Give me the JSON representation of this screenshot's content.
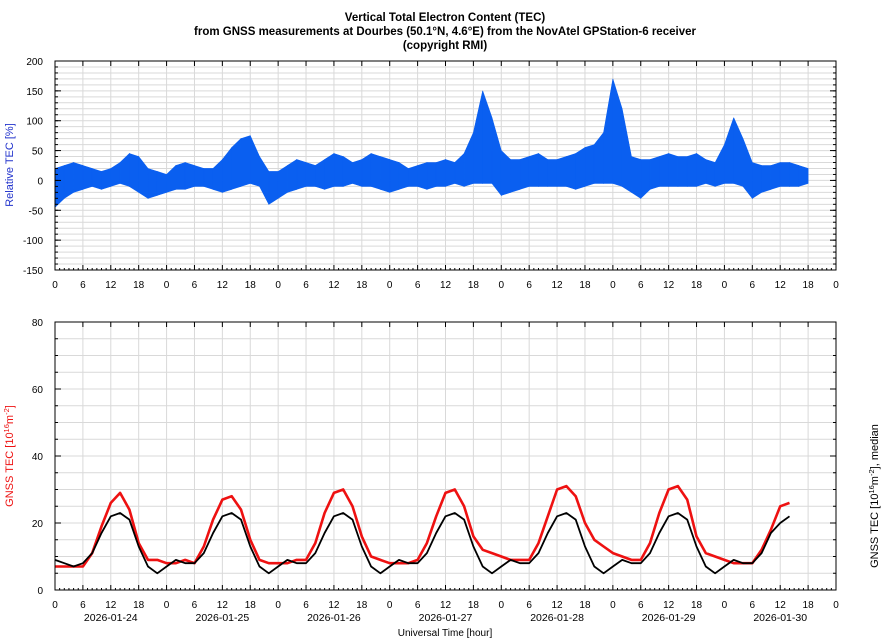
{
  "title": {
    "line1": "Vertical Total Electron Content (TEC)",
    "line2": "from GNSS measurements at Dourbes (50.1°N, 4.6°E) from the NovAtel GPStation-6 receiver",
    "line3": "(copyright RMI)"
  },
  "colors": {
    "relative": "#0a5ff0",
    "relative_label": "#2233cc",
    "gnss": "#ee1111",
    "median": "#000000",
    "grid": "#d9d9d9"
  },
  "chart_data": [
    {
      "type": "area",
      "name": "relative-tec",
      "ylabel": "Relative TEC [%]",
      "ylim": [
        -150,
        200
      ],
      "yticks": [
        200,
        150,
        100,
        50,
        0,
        -50,
        -100,
        -150
      ],
      "xlim": [
        0,
        168
      ],
      "xtick_labels": [
        "0",
        "6",
        "12",
        "18",
        "0",
        "6",
        "12",
        "18",
        "0",
        "6",
        "12",
        "18",
        "0",
        "6",
        "12",
        "18",
        "0",
        "6",
        "12",
        "18",
        "0",
        "6",
        "12",
        "18",
        "0",
        "6",
        "12",
        "18",
        "0"
      ],
      "grid": true,
      "x": [
        0,
        2,
        4,
        6,
        8,
        10,
        12,
        14,
        16,
        18,
        20,
        22,
        24,
        26,
        28,
        30,
        32,
        34,
        36,
        38,
        40,
        42,
        44,
        46,
        48,
        50,
        52,
        54,
        56,
        58,
        60,
        62,
        64,
        66,
        68,
        70,
        72,
        74,
        76,
        78,
        80,
        82,
        84,
        86,
        88,
        90,
        92,
        94,
        96,
        98,
        100,
        102,
        104,
        106,
        108,
        110,
        112,
        114,
        116,
        118,
        120,
        122,
        124,
        126,
        128,
        130,
        132,
        134,
        136,
        138,
        140,
        142,
        144,
        146,
        148,
        150,
        152,
        154,
        156,
        158,
        160,
        162,
        164,
        166,
        168
      ],
      "upper": [
        20,
        25,
        30,
        25,
        20,
        15,
        20,
        30,
        45,
        40,
        20,
        15,
        10,
        25,
        30,
        25,
        20,
        20,
        35,
        55,
        70,
        75,
        40,
        15,
        15,
        25,
        35,
        30,
        25,
        35,
        45,
        40,
        30,
        35,
        45,
        40,
        35,
        30,
        20,
        25,
        30,
        30,
        35,
        30,
        45,
        80,
        150,
        105,
        50,
        35,
        35,
        40,
        45,
        35,
        35,
        40,
        45,
        55,
        60,
        80,
        170,
        120,
        40,
        35,
        35,
        40,
        45,
        40,
        40,
        45,
        35,
        30,
        60,
        105,
        70,
        30,
        25,
        25,
        30,
        30,
        25,
        20,
        null,
        null,
        null
      ],
      "lower": [
        -45,
        -30,
        -20,
        -15,
        -10,
        -15,
        -10,
        -5,
        -10,
        -20,
        -30,
        -25,
        -20,
        -15,
        -15,
        -10,
        -10,
        -15,
        -20,
        -15,
        -10,
        -5,
        -10,
        -40,
        -30,
        -20,
        -15,
        -10,
        -10,
        -15,
        -10,
        -10,
        -5,
        -10,
        -10,
        -15,
        -20,
        -15,
        -10,
        -10,
        -15,
        -10,
        -10,
        -5,
        -10,
        -5,
        -5,
        -5,
        -25,
        -20,
        -15,
        -10,
        -10,
        -10,
        -10,
        -10,
        -15,
        -10,
        -5,
        -5,
        -5,
        -10,
        -20,
        -30,
        -15,
        -10,
        -10,
        -10,
        -10,
        -10,
        -5,
        -10,
        -5,
        -5,
        -10,
        -30,
        -20,
        -15,
        -10,
        -10,
        -10,
        -5,
        null,
        null,
        null
      ]
    },
    {
      "type": "line",
      "name": "gnss-tec",
      "ylabel": "GNSS TEC [10",
      "ylabel_exp": "16",
      "ylabel_unit": "m",
      "ylabel_unit_exp": "-2",
      "ylabel_end": "]",
      "y2label": "GNSS TEC [10",
      "y2label_exp": "16",
      "y2label_unit": "m",
      "y2label_unit_exp": "-2",
      "y2label_end": "], median",
      "xlabel": "Universal Time [hour]",
      "ylim": [
        0,
        80
      ],
      "yticks": [
        0,
        20,
        40,
        60,
        80
      ],
      "xlim": [
        0,
        168
      ],
      "xtick_labels": [
        "0",
        "6",
        "12",
        "18",
        "0",
        "6",
        "12",
        "18",
        "0",
        "6",
        "12",
        "18",
        "0",
        "6",
        "12",
        "18",
        "0",
        "6",
        "12",
        "18",
        "0",
        "6",
        "12",
        "18",
        "0",
        "6",
        "12",
        "18",
        "0"
      ],
      "date_labels": [
        "2026-01-24",
        "2026-01-25",
        "2026-01-26",
        "2026-01-27",
        "2026-01-28",
        "2026-01-29",
        "2026-01-30"
      ],
      "grid": true,
      "x": [
        0,
        2,
        4,
        6,
        8,
        10,
        12,
        14,
        16,
        18,
        20,
        22,
        24,
        26,
        28,
        30,
        32,
        34,
        36,
        38,
        40,
        42,
        44,
        46,
        48,
        50,
        52,
        54,
        56,
        58,
        60,
        62,
        64,
        66,
        68,
        70,
        72,
        74,
        76,
        78,
        80,
        82,
        84,
        86,
        88,
        90,
        92,
        94,
        96,
        98,
        100,
        102,
        104,
        106,
        108,
        110,
        112,
        114,
        116,
        118,
        120,
        122,
        124,
        126,
        128,
        130,
        132,
        134,
        136,
        138,
        140,
        142,
        144,
        146,
        148,
        150,
        152,
        154,
        156,
        158,
        160,
        162,
        164,
        166,
        168
      ],
      "series": [
        {
          "values": [
            7,
            7,
            7,
            7,
            11,
            19,
            26,
            29,
            24,
            14,
            9,
            9,
            8,
            8,
            9,
            8,
            13,
            21,
            27,
            28,
            24,
            15,
            9,
            8,
            8,
            8,
            9,
            9,
            14,
            23,
            29,
            30,
            25,
            16,
            10,
            9,
            8,
            8,
            8,
            9,
            14,
            22,
            29,
            30,
            25,
            16,
            12,
            11,
            10,
            9,
            9,
            9,
            14,
            22,
            30,
            31,
            28,
            20,
            15,
            13,
            11,
            10,
            9,
            9,
            14,
            23,
            30,
            31,
            27,
            16,
            11,
            10,
            9,
            8,
            8,
            8,
            12,
            18,
            25,
            26,
            null,
            null,
            null,
            null,
            null
          ]
        },
        {
          "values": [
            9,
            8,
            7,
            8,
            11,
            17,
            22,
            23,
            21,
            13,
            7,
            5,
            7,
            9,
            8,
            8,
            11,
            17,
            22,
            23,
            21,
            13,
            7,
            5,
            7,
            9,
            8,
            8,
            11,
            17,
            22,
            23,
            21,
            13,
            7,
            5,
            7,
            9,
            8,
            8,
            11,
            17,
            22,
            23,
            21,
            13,
            7,
            5,
            7,
            9,
            8,
            8,
            11,
            17,
            22,
            23,
            21,
            13,
            7,
            5,
            7,
            9,
            8,
            8,
            11,
            17,
            22,
            23,
            21,
            13,
            7,
            5,
            7,
            9,
            8,
            8,
            11,
            17,
            20,
            22,
            null,
            null,
            null,
            null,
            null
          ]
        }
      ]
    }
  ]
}
